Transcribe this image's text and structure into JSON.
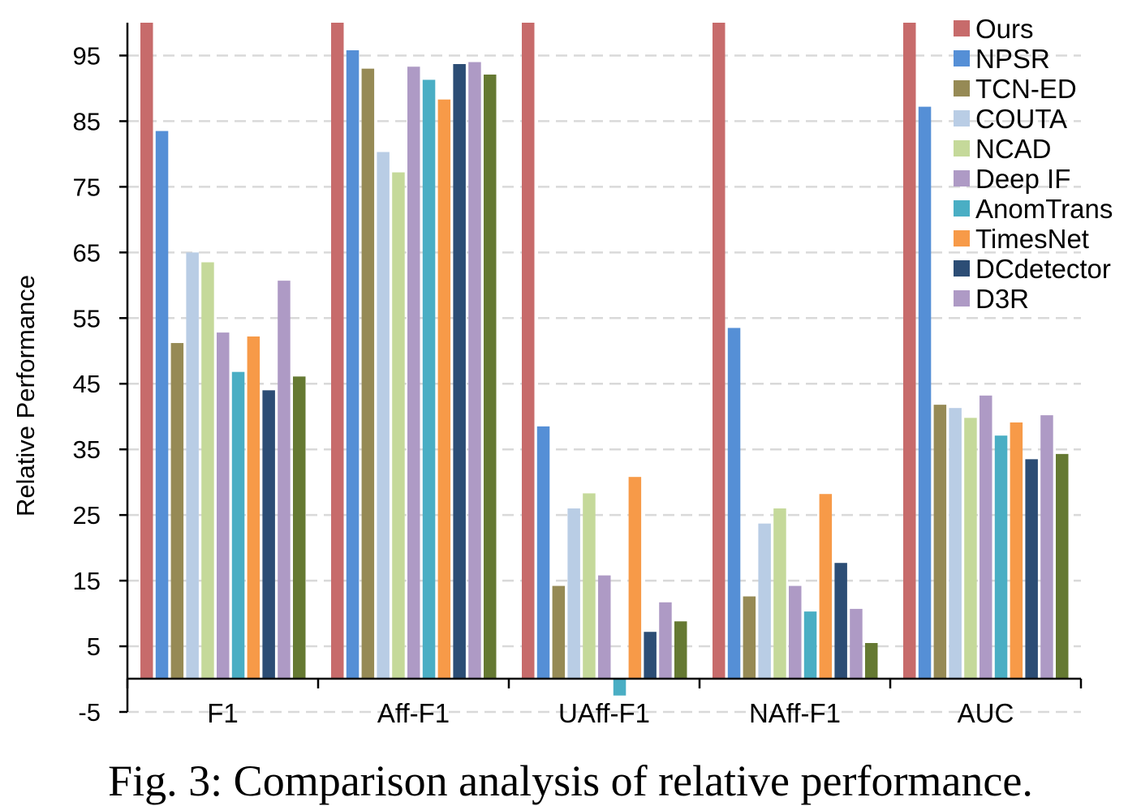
{
  "caption": "Fig. 3: Comparison analysis of relative performance.",
  "chart_data": {
    "type": "bar",
    "title": "",
    "xlabel": "",
    "ylabel": "Relative Performance",
    "ylim": [
      -5,
      100
    ],
    "yticks": [
      -5,
      5,
      15,
      25,
      35,
      45,
      55,
      65,
      75,
      85,
      95
    ],
    "grid": true,
    "legend_position": "top-right",
    "categories": [
      "F1",
      "Aff-F1",
      "UAff-F1",
      "NAff-F1",
      "AUC"
    ],
    "series": [
      {
        "name": "Ours",
        "color": "#C76B6B",
        "values": [
          100,
          100,
          100,
          100,
          100
        ]
      },
      {
        "name": "NPSR",
        "color": "#558FD6",
        "values": [
          83.5,
          95.8,
          38.5,
          53.5,
          87.2
        ]
      },
      {
        "name": "TCN-ED",
        "color": "#968A55",
        "values": [
          51.2,
          93,
          14.2,
          12.6,
          41.8
        ]
      },
      {
        "name": "COUTA",
        "color": "#B9CDE5",
        "values": [
          65,
          80.3,
          26,
          23.7,
          41.3
        ]
      },
      {
        "name": "NCAD",
        "color": "#C5D99A",
        "values": [
          63.5,
          77.2,
          28.3,
          26,
          39.8
        ]
      },
      {
        "name": "Deep IF",
        "color": "#AE9AC5",
        "values": [
          52.8,
          93.3,
          15.8,
          14.2,
          43.2
        ]
      },
      {
        "name": "AnomTrans",
        "color": "#4AAEC4",
        "values": [
          46.8,
          91.3,
          -2.5,
          10.3,
          37.1
        ]
      },
      {
        "name": "TimesNet",
        "color": "#F79A48",
        "values": [
          52.2,
          88.3,
          30.8,
          28.2,
          39.1
        ]
      },
      {
        "name": "DCdetector",
        "color": "#2C4D75",
        "values": [
          44,
          93.7,
          7.2,
          17.7,
          33.5
        ]
      },
      {
        "name": "D3R",
        "color": "#AE9AC5",
        "values": [
          60.7,
          94,
          11.7,
          10.7,
          40.2
        ]
      },
      {
        "color": "#657932",
        "values": [
          46.1,
          92.1,
          8.8,
          5.5,
          34.3
        ]
      }
    ]
  }
}
